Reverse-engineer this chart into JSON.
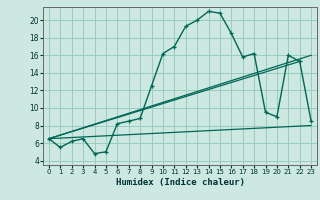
{
  "xlabel": "Humidex (Indice chaleur)",
  "bg_color": "#cce8e0",
  "grid_color": "#99ccbf",
  "line_color": "#006655",
  "x_ticks": [
    0,
    1,
    2,
    3,
    4,
    5,
    6,
    7,
    8,
    9,
    10,
    11,
    12,
    13,
    14,
    15,
    16,
    17,
    18,
    19,
    20,
    21,
    22,
    23
  ],
  "y_ticks": [
    4,
    6,
    8,
    10,
    12,
    14,
    16,
    18,
    20
  ],
  "xlim": [
    -0.5,
    23.5
  ],
  "ylim": [
    3.5,
    21.5
  ],
  "main_line_x": [
    0,
    1,
    2,
    3,
    4,
    5,
    6,
    7,
    8,
    9,
    10,
    11,
    12,
    13,
    14,
    15,
    16,
    17,
    18,
    19,
    20,
    21,
    22,
    23
  ],
  "main_line_y": [
    6.5,
    5.5,
    6.2,
    6.5,
    4.8,
    5.0,
    8.2,
    8.5,
    8.8,
    12.5,
    16.2,
    17.0,
    19.3,
    20.0,
    21.0,
    20.8,
    18.5,
    15.8,
    16.2,
    9.5,
    9.0,
    16.0,
    15.3,
    8.5
  ],
  "line2_x": [
    0,
    23
  ],
  "line2_y": [
    6.5,
    16.0
  ],
  "line3_x": [
    0,
    23
  ],
  "line3_y": [
    6.5,
    8.0
  ],
  "line4_x": [
    0,
    22
  ],
  "line4_y": [
    6.5,
    15.3
  ]
}
